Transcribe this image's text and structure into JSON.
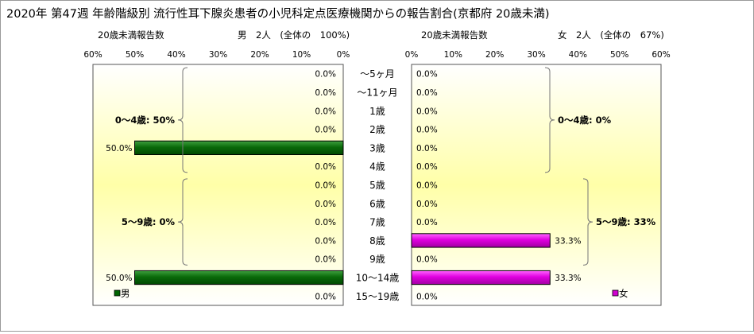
{
  "title": "2020年 第47週 年齢階級別 流行性耳下腺炎患者の小児科定点医療機関からの報告割合(京都府 20歳未満)",
  "chart_data": {
    "type": "bar",
    "categories": [
      "～5ヶ月",
      "～11ヶ月",
      "1歳",
      "2歳",
      "3歳",
      "4歳",
      "5歳",
      "6歳",
      "7歳",
      "8歳",
      "9歳",
      "10～14歳",
      "15～19歳"
    ],
    "axis_ticks": [
      "60%",
      "50%",
      "40%",
      "30%",
      "20%",
      "10%",
      "0%"
    ],
    "axis_ticks_right": [
      "0%",
      "10%",
      "20%",
      "30%",
      "40%",
      "50%",
      "60%"
    ],
    "xlim": [
      0,
      60
    ],
    "panels": [
      {
        "side": "left",
        "subtitle_left": "20歳未満報告数",
        "subtitle_right": "男　2人　(全体の　100%)",
        "legend": "男",
        "color": "#006400",
        "values": [
          0,
          0,
          0,
          0,
          50,
          0,
          0,
          0,
          0,
          0,
          0,
          50,
          0
        ],
        "labels": [
          "0.0%",
          "0.0%",
          "0.0%",
          "0.0%",
          "50.0%",
          "0.0%",
          "0.0%",
          "0.0%",
          "0.0%",
          "0.0%",
          "0.0%",
          "50.0%",
          "0.0%"
        ],
        "groups": [
          {
            "label": "0～4歳: 50%",
            "from": 0,
            "to": 5
          },
          {
            "label": "5～9歳: 0%",
            "from": 6,
            "to": 10
          }
        ]
      },
      {
        "side": "right",
        "subtitle_left": "20歳未満報告数",
        "subtitle_right": "女　2人　(全体の　67%)",
        "legend": "女",
        "color": "#d000d0",
        "values": [
          0,
          0,
          0,
          0,
          0,
          0,
          0,
          0,
          0,
          33.3,
          0,
          33.3,
          0
        ],
        "labels": [
          "0.0%",
          "0.0%",
          "0.0%",
          "0.0%",
          "0.0%",
          "0.0%",
          "0.0%",
          "0.0%",
          "0.0%",
          "33.3%",
          "0.0%",
          "33.3%",
          "0.0%"
        ],
        "groups": [
          {
            "label": "0～4歳: 0%",
            "from": 0,
            "to": 5
          },
          {
            "label": "5～9歳: 33%",
            "from": 6,
            "to": 10
          }
        ]
      }
    ]
  }
}
